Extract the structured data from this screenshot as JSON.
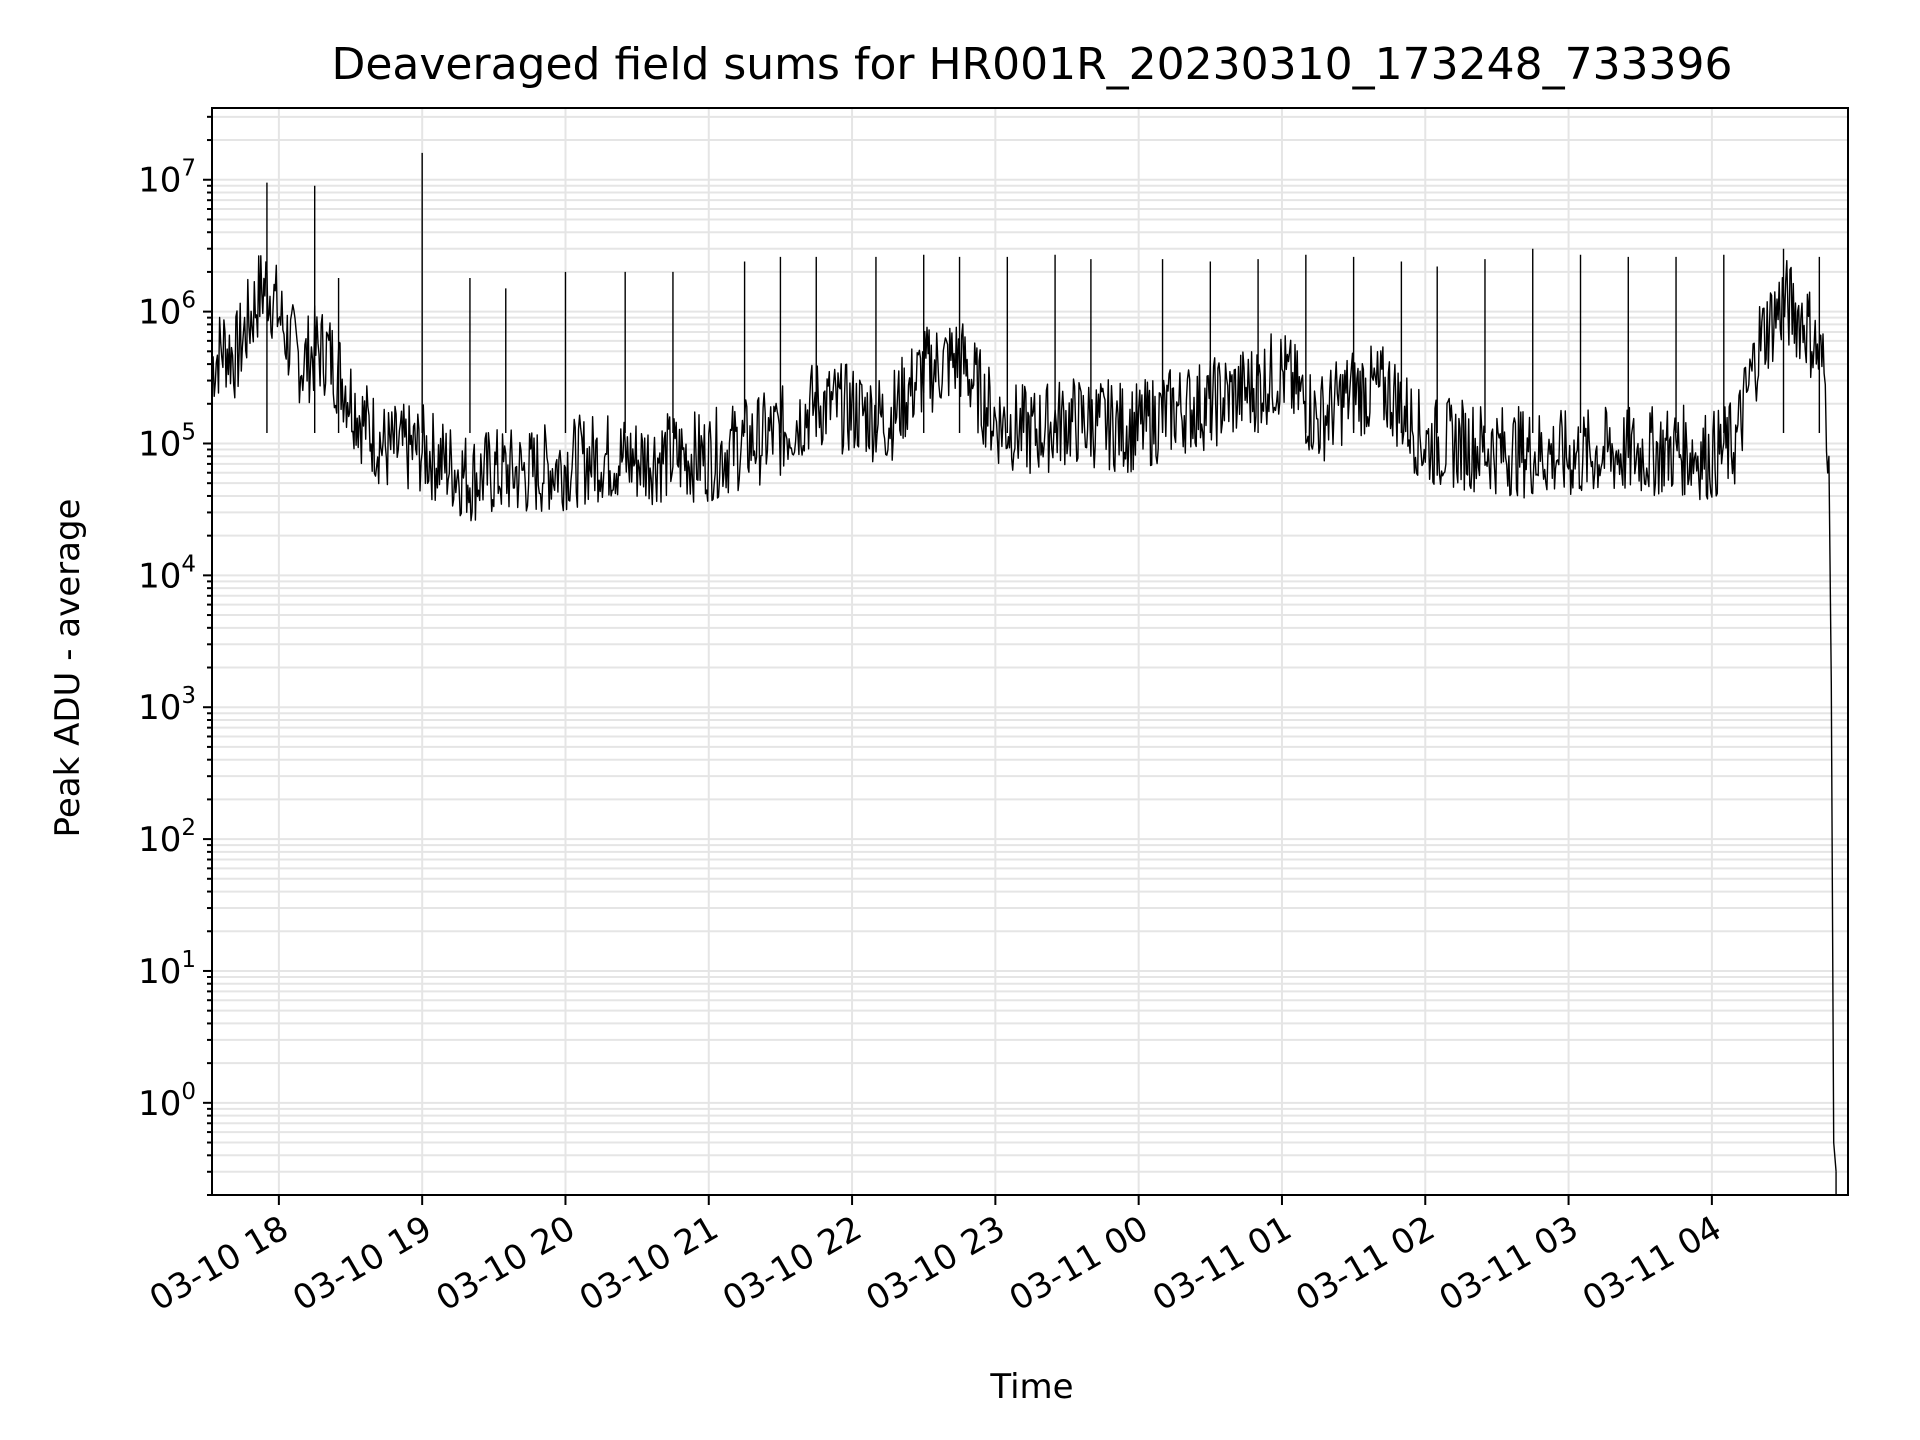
{
  "chart_data": {
    "type": "line",
    "title": "Deaveraged field sums for HR001R_20230310_173248_733396",
    "xlabel": "Time",
    "ylabel": "Peak ADU - average",
    "x_scale": "time",
    "y_scale": "log",
    "xlim": [
      "2023-03-10 17:32",
      "2023-03-11 04:57"
    ],
    "ylim": [
      0.2,
      35000000
    ],
    "grid": true,
    "legend": "none",
    "x_tick_values": [
      "2023-03-10 18:00",
      "2023-03-10 19:00",
      "2023-03-10 20:00",
      "2023-03-10 21:00",
      "2023-03-10 22:00",
      "2023-03-10 23:00",
      "2023-03-11 00:00",
      "2023-03-11 01:00",
      "2023-03-11 02:00",
      "2023-03-11 03:00",
      "2023-03-11 04:00"
    ],
    "x_tick_labels": [
      "03-10 18",
      "03-10 19",
      "03-10 20",
      "03-10 21",
      "03-10 22",
      "03-10 23",
      "03-11 00",
      "03-11 01",
      "03-11 02",
      "03-11 03",
      "03-11 04"
    ],
    "y_ticks": [
      {
        "value": 1,
        "base": "10",
        "exp": "0"
      },
      {
        "value": 10,
        "base": "10",
        "exp": "1"
      },
      {
        "value": 100,
        "base": "10",
        "exp": "2"
      },
      {
        "value": 1000,
        "base": "10",
        "exp": "3"
      },
      {
        "value": 10000,
        "base": "10",
        "exp": "4"
      },
      {
        "value": 100000,
        "base": "10",
        "exp": "5"
      },
      {
        "value": 1000000,
        "base": "10",
        "exp": "6"
      },
      {
        "value": 10000000,
        "base": "10",
        "exp": "7"
      }
    ],
    "line_color": "#000000",
    "grid_color": "#e5e5e5",
    "series": [
      {
        "x": [
          "2023-03-10 17:32",
          "2023-03-10 17:37",
          "2023-03-10 17:42",
          "2023-03-10 17:47",
          "2023-03-10 17:52",
          "2023-03-10 17:55",
          "2023-03-10 17:58",
          "2023-03-10 18:04",
          "2023-03-10 18:10",
          "2023-03-10 18:15",
          "2023-03-10 18:20",
          "2023-03-10 18:27",
          "2023-03-10 18:35",
          "2023-03-10 18:45",
          "2023-03-10 19:00",
          "2023-03-10 19:10",
          "2023-03-10 19:20",
          "2023-03-10 19:30",
          "2023-03-10 19:45",
          "2023-03-10 20:00",
          "2023-03-10 20:15",
          "2023-03-10 20:30",
          "2023-03-10 20:45",
          "2023-03-10 21:00",
          "2023-03-10 21:15",
          "2023-03-10 21:30",
          "2023-03-10 21:45",
          "2023-03-10 22:00",
          "2023-03-10 22:15",
          "2023-03-10 22:30",
          "2023-03-10 22:45",
          "2023-03-10 23:00",
          "2023-03-10 23:15",
          "2023-03-10 23:30",
          "2023-03-10 23:45",
          "2023-03-11 00:00",
          "2023-03-11 00:15",
          "2023-03-11 00:30",
          "2023-03-11 00:45",
          "2023-03-11 01:00",
          "2023-03-11 01:15",
          "2023-03-11 01:30",
          "2023-03-11 01:45",
          "2023-03-11 02:00",
          "2023-03-11 02:15",
          "2023-03-11 02:30",
          "2023-03-11 02:45",
          "2023-03-11 03:00",
          "2023-03-11 03:15",
          "2023-03-11 03:30",
          "2023-03-11 03:45",
          "2023-03-11 04:00",
          "2023-03-11 04:10",
          "2023-03-11 04:20",
          "2023-03-11 04:30",
          "2023-03-11 04:40",
          "2023-03-11 04:47",
          "2023-03-11 04:49",
          "2023-03-11 04:50",
          "2023-03-11 04:51",
          "2023-03-11 04:52"
        ],
        "y": [
          400000,
          550000,
          450000,
          800000,
          1400000,
          1600000,
          1200000,
          600000,
          400000,
          500000,
          500000,
          300000,
          150000,
          90000,
          90000,
          70000,
          55000,
          60000,
          60000,
          70000,
          80000,
          75000,
          80000,
          80000,
          100000,
          120000,
          200000,
          180000,
          150000,
          350000,
          450000,
          150000,
          120000,
          150000,
          140000,
          130000,
          180000,
          200000,
          250000,
          350000,
          150000,
          250000,
          250000,
          100000,
          100000,
          90000,
          85000,
          80000,
          85000,
          85000,
          90000,
          80000,
          100000,
          600000,
          1200000,
          800000,
          350000,
          80000,
          1500,
          0.5,
          0.3
        ]
      }
    ],
    "spikes": [
      {
        "x": "2023-03-10 17:55",
        "y": 9500000
      },
      {
        "x": "2023-03-10 18:15",
        "y": 9000000
      },
      {
        "x": "2023-03-10 19:00",
        "y": 16000000
      },
      {
        "x": "2023-03-10 18:25",
        "y": 1800000
      },
      {
        "x": "2023-03-10 19:20",
        "y": 1800000
      },
      {
        "x": "2023-03-10 19:35",
        "y": 1500000
      },
      {
        "x": "2023-03-10 20:00",
        "y": 2000000
      },
      {
        "x": "2023-03-10 20:25",
        "y": 2000000
      },
      {
        "x": "2023-03-10 20:45",
        "y": 2000000
      },
      {
        "x": "2023-03-10 21:15",
        "y": 2400000
      },
      {
        "x": "2023-03-10 21:30",
        "y": 2600000
      },
      {
        "x": "2023-03-10 21:45",
        "y": 2600000
      },
      {
        "x": "2023-03-10 22:10",
        "y": 2600000
      },
      {
        "x": "2023-03-10 22:30",
        "y": 2700000
      },
      {
        "x": "2023-03-10 22:45",
        "y": 2600000
      },
      {
        "x": "2023-03-10 23:05",
        "y": 2600000
      },
      {
        "x": "2023-03-10 23:25",
        "y": 2700000
      },
      {
        "x": "2023-03-10 23:40",
        "y": 2500000
      },
      {
        "x": "2023-03-11 00:10",
        "y": 2500000
      },
      {
        "x": "2023-03-11 00:30",
        "y": 2400000
      },
      {
        "x": "2023-03-11 00:50",
        "y": 2500000
      },
      {
        "x": "2023-03-11 01:10",
        "y": 2700000
      },
      {
        "x": "2023-03-11 01:30",
        "y": 2600000
      },
      {
        "x": "2023-03-11 01:50",
        "y": 2400000
      },
      {
        "x": "2023-03-11 02:05",
        "y": 2200000
      },
      {
        "x": "2023-03-11 02:25",
        "y": 2500000
      },
      {
        "x": "2023-03-11 02:45",
        "y": 3000000
      },
      {
        "x": "2023-03-11 03:05",
        "y": 2700000
      },
      {
        "x": "2023-03-11 03:25",
        "y": 2600000
      },
      {
        "x": "2023-03-11 03:45",
        "y": 2600000
      },
      {
        "x": "2023-03-11 04:05",
        "y": 2700000
      },
      {
        "x": "2023-03-11 04:30",
        "y": 3000000
      },
      {
        "x": "2023-03-11 04:45",
        "y": 2600000
      }
    ]
  }
}
